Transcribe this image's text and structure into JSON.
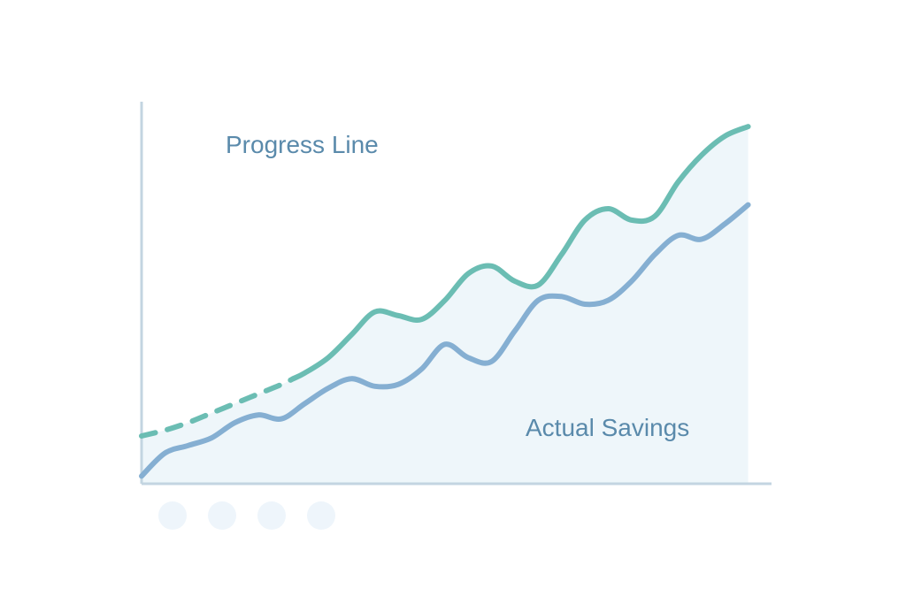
{
  "chart_data": {
    "type": "line",
    "title": "",
    "xlabel": "",
    "ylabel": "",
    "grid": false,
    "legend": "inline",
    "x": [
      0,
      1,
      2,
      3,
      4,
      5,
      6,
      7,
      8,
      9,
      10,
      11,
      12,
      13,
      14,
      15,
      16,
      17,
      18,
      19,
      20,
      21,
      22,
      23,
      24,
      25,
      26
    ],
    "xlim": [
      0,
      27
    ],
    "ylim": [
      0,
      100
    ],
    "series": [
      {
        "name": "Progress Line",
        "color": "#6bbdb3",
        "dashed_until_x": 6.5,
        "values": [
          12.5,
          14,
          16,
          18.5,
          21,
          23.5,
          26,
          29,
          33,
          39,
          45,
          44,
          43,
          48,
          55,
          57,
          53,
          52,
          60,
          69,
          72,
          69,
          70,
          79,
          86,
          91,
          93.5
        ]
      },
      {
        "name": "Actual Savings",
        "color": "#85afd2",
        "values": [
          2,
          8,
          10,
          12,
          16,
          18,
          17,
          21,
          25,
          27.5,
          25.5,
          26,
          30,
          36.5,
          33,
          32,
          40,
          48,
          49,
          47,
          48,
          53,
          60,
          65,
          64,
          68,
          73
        ]
      }
    ],
    "area_fill": "#eef6fa",
    "axis_color": "#c3d5e1",
    "label_color": "#5a8aab",
    "pagination_dots": 4,
    "dot_color": "#eef5fb"
  }
}
